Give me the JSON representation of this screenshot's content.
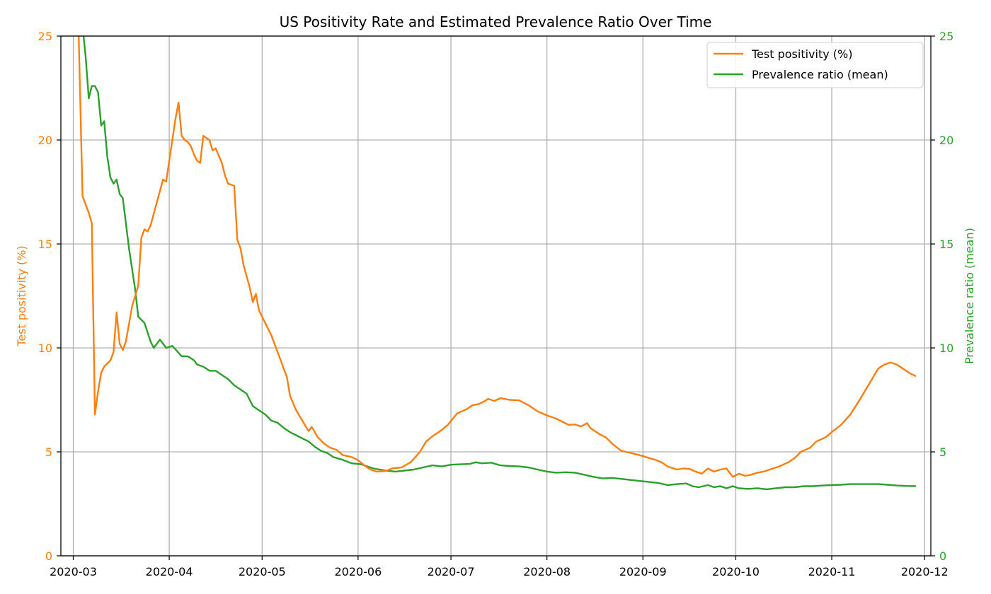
{
  "chart_data": {
    "type": "line",
    "title": "US Positivity Rate and Estimated Prevalence Ratio Over Time",
    "xlabel": "",
    "x_ticks": [
      "2020-03",
      "2020-04",
      "2020-05",
      "2020-06",
      "2020-07",
      "2020-08",
      "2020-09",
      "2020-10",
      "2020-11",
      "2020-12"
    ],
    "xlim": [
      "2020-02-26",
      "2020-12-03"
    ],
    "y_left": {
      "label": "Test positivity (%)",
      "lim": [
        0,
        25
      ],
      "ticks": [
        "0",
        "5",
        "10",
        "15",
        "20",
        "25"
      ],
      "color": "#ff7f0e"
    },
    "y_right": {
      "label": "Prevalence ratio (mean)",
      "lim": [
        0,
        25
      ],
      "ticks": [
        "0",
        "5",
        "10",
        "15",
        "20",
        "25"
      ],
      "color": "#2ca02c"
    },
    "grid": true,
    "legend_position": "top-right",
    "series": [
      {
        "name": "Test positivity (%)",
        "axis": "left",
        "color": "#ff7f0e",
        "points": [
          [
            "2020-03-01",
            36
          ],
          [
            "2020-03-04",
            17.3
          ],
          [
            "2020-03-06",
            16.5
          ],
          [
            "2020-03-07",
            16.0
          ],
          [
            "2020-03-08",
            6.8
          ],
          [
            "2020-03-09",
            7.9
          ],
          [
            "2020-03-10",
            8.8
          ],
          [
            "2020-03-11",
            9.1
          ],
          [
            "2020-03-13",
            9.4
          ],
          [
            "2020-03-14",
            9.8
          ],
          [
            "2020-03-15",
            11.7
          ],
          [
            "2020-03-16",
            10.2
          ],
          [
            "2020-03-17",
            9.9
          ],
          [
            "2020-03-18",
            10.3
          ],
          [
            "2020-03-20",
            12.0
          ],
          [
            "2020-03-22",
            13.0
          ],
          [
            "2020-03-23",
            15.3
          ],
          [
            "2020-03-24",
            15.7
          ],
          [
            "2020-03-25",
            15.6
          ],
          [
            "2020-03-26",
            15.9
          ],
          [
            "2020-03-28",
            17.0
          ],
          [
            "2020-03-30",
            18.1
          ],
          [
            "2020-03-31",
            18.0
          ],
          [
            "2020-04-01",
            19.0
          ],
          [
            "2020-04-03",
            21.0
          ],
          [
            "2020-04-04",
            21.8
          ],
          [
            "2020-04-05",
            20.2
          ],
          [
            "2020-04-06",
            20.0
          ],
          [
            "2020-04-07",
            19.9
          ],
          [
            "2020-04-08",
            19.7
          ],
          [
            "2020-04-09",
            19.3
          ],
          [
            "2020-04-10",
            19.0
          ],
          [
            "2020-04-11",
            18.9
          ],
          [
            "2020-04-12",
            20.2
          ],
          [
            "2020-04-13",
            20.1
          ],
          [
            "2020-04-14",
            20.0
          ],
          [
            "2020-04-15",
            19.5
          ],
          [
            "2020-04-16",
            19.6
          ],
          [
            "2020-04-18",
            18.9
          ],
          [
            "2020-04-19",
            18.3
          ],
          [
            "2020-04-20",
            17.9
          ],
          [
            "2020-04-22",
            17.8
          ],
          [
            "2020-04-23",
            15.2
          ],
          [
            "2020-04-24",
            14.8
          ],
          [
            "2020-04-25",
            14.0
          ],
          [
            "2020-04-27",
            12.9
          ],
          [
            "2020-04-28",
            12.2
          ],
          [
            "2020-04-29",
            12.6
          ],
          [
            "2020-04-30",
            11.8
          ],
          [
            "2020-05-02",
            11.2
          ],
          [
            "2020-05-04",
            10.6
          ],
          [
            "2020-05-05",
            10.2
          ],
          [
            "2020-05-07",
            9.4
          ],
          [
            "2020-05-09",
            8.6
          ],
          [
            "2020-05-10",
            7.7
          ],
          [
            "2020-05-12",
            7.0
          ],
          [
            "2020-05-14",
            6.5
          ],
          [
            "2020-05-16",
            6.0
          ],
          [
            "2020-05-17",
            6.2
          ],
          [
            "2020-05-19",
            5.7
          ],
          [
            "2020-05-21",
            5.4
          ],
          [
            "2020-05-23",
            5.2
          ],
          [
            "2020-05-25",
            5.1
          ],
          [
            "2020-05-27",
            4.85
          ],
          [
            "2020-05-30",
            4.75
          ],
          [
            "2020-06-01",
            4.6
          ],
          [
            "2020-06-03",
            4.35
          ],
          [
            "2020-06-05",
            4.15
          ],
          [
            "2020-06-07",
            4.05
          ],
          [
            "2020-06-10",
            4.08
          ],
          [
            "2020-06-12",
            4.2
          ],
          [
            "2020-06-15",
            4.25
          ],
          [
            "2020-06-18",
            4.5
          ],
          [
            "2020-06-21",
            5.0
          ],
          [
            "2020-06-23",
            5.5
          ],
          [
            "2020-06-25",
            5.75
          ],
          [
            "2020-06-28",
            6.05
          ],
          [
            "2020-06-30",
            6.3
          ],
          [
            "2020-07-03",
            6.85
          ],
          [
            "2020-07-06",
            7.05
          ],
          [
            "2020-07-08",
            7.25
          ],
          [
            "2020-07-10",
            7.3
          ],
          [
            "2020-07-12",
            7.45
          ],
          [
            "2020-07-13",
            7.55
          ],
          [
            "2020-07-15",
            7.45
          ],
          [
            "2020-07-17",
            7.58
          ],
          [
            "2020-07-20",
            7.5
          ],
          [
            "2020-07-23",
            7.48
          ],
          [
            "2020-07-26",
            7.25
          ],
          [
            "2020-07-29",
            6.95
          ],
          [
            "2020-08-01",
            6.75
          ],
          [
            "2020-08-04",
            6.6
          ],
          [
            "2020-08-06",
            6.45
          ],
          [
            "2020-08-08",
            6.3
          ],
          [
            "2020-08-10",
            6.32
          ],
          [
            "2020-08-12",
            6.22
          ],
          [
            "2020-08-14",
            6.38
          ],
          [
            "2020-08-15",
            6.15
          ],
          [
            "2020-08-18",
            5.85
          ],
          [
            "2020-08-20",
            5.7
          ],
          [
            "2020-08-22",
            5.4
          ],
          [
            "2020-08-25",
            5.05
          ],
          [
            "2020-08-28",
            4.95
          ],
          [
            "2020-09-01",
            4.8
          ],
          [
            "2020-09-03",
            4.7
          ],
          [
            "2020-09-05",
            4.62
          ],
          [
            "2020-09-07",
            4.5
          ],
          [
            "2020-09-09",
            4.3
          ],
          [
            "2020-09-12",
            4.15
          ],
          [
            "2020-09-14",
            4.2
          ],
          [
            "2020-09-16",
            4.18
          ],
          [
            "2020-09-18",
            4.05
          ],
          [
            "2020-09-20",
            3.95
          ],
          [
            "2020-09-22",
            4.2
          ],
          [
            "2020-09-24",
            4.05
          ],
          [
            "2020-09-26",
            4.15
          ],
          [
            "2020-09-28",
            4.2
          ],
          [
            "2020-09-30",
            3.8
          ],
          [
            "2020-10-02",
            3.95
          ],
          [
            "2020-10-04",
            3.85
          ],
          [
            "2020-10-06",
            3.9
          ],
          [
            "2020-10-08",
            4.0
          ],
          [
            "2020-10-10",
            4.05
          ],
          [
            "2020-10-12",
            4.15
          ],
          [
            "2020-10-15",
            4.3
          ],
          [
            "2020-10-18",
            4.5
          ],
          [
            "2020-10-20",
            4.7
          ],
          [
            "2020-10-22",
            5.0
          ],
          [
            "2020-10-25",
            5.2
          ],
          [
            "2020-10-27",
            5.5
          ],
          [
            "2020-10-30",
            5.7
          ],
          [
            "2020-11-01",
            5.95
          ],
          [
            "2020-11-04",
            6.3
          ],
          [
            "2020-11-07",
            6.8
          ],
          [
            "2020-11-10",
            7.5
          ],
          [
            "2020-11-12",
            8.0
          ],
          [
            "2020-11-14",
            8.5
          ],
          [
            "2020-11-16",
            9.0
          ],
          [
            "2020-11-18",
            9.2
          ],
          [
            "2020-11-20",
            9.3
          ],
          [
            "2020-11-22",
            9.2
          ],
          [
            "2020-11-24",
            9.0
          ],
          [
            "2020-11-26",
            8.8
          ],
          [
            "2020-11-28",
            8.65
          ]
        ]
      },
      {
        "name": "Prevalence ratio (mean)",
        "axis": "right",
        "color": "#2ca02c",
        "points": [
          [
            "2020-03-01",
            36
          ],
          [
            "2020-03-04",
            25.5
          ],
          [
            "2020-03-05",
            24.0
          ],
          [
            "2020-03-06",
            22.0
          ],
          [
            "2020-03-07",
            22.6
          ],
          [
            "2020-03-08",
            22.6
          ],
          [
            "2020-03-09",
            22.3
          ],
          [
            "2020-03-10",
            20.7
          ],
          [
            "2020-03-11",
            20.9
          ],
          [
            "2020-03-12",
            19.2
          ],
          [
            "2020-03-13",
            18.2
          ],
          [
            "2020-03-14",
            17.9
          ],
          [
            "2020-03-15",
            18.1
          ],
          [
            "2020-03-16",
            17.4
          ],
          [
            "2020-03-17",
            17.2
          ],
          [
            "2020-03-19",
            14.8
          ],
          [
            "2020-03-20",
            13.8
          ],
          [
            "2020-03-21",
            12.8
          ],
          [
            "2020-03-22",
            11.5
          ],
          [
            "2020-03-24",
            11.2
          ],
          [
            "2020-03-26",
            10.3
          ],
          [
            "2020-03-27",
            10.0
          ],
          [
            "2020-03-29",
            10.4
          ],
          [
            "2020-03-31",
            10.0
          ],
          [
            "2020-04-02",
            10.1
          ],
          [
            "2020-04-05",
            9.6
          ],
          [
            "2020-04-07",
            9.6
          ],
          [
            "2020-04-09",
            9.4
          ],
          [
            "2020-04-10",
            9.2
          ],
          [
            "2020-04-12",
            9.1
          ],
          [
            "2020-04-14",
            8.9
          ],
          [
            "2020-04-16",
            8.9
          ],
          [
            "2020-04-18",
            8.7
          ],
          [
            "2020-04-20",
            8.5
          ],
          [
            "2020-04-22",
            8.2
          ],
          [
            "2020-04-24",
            8.0
          ],
          [
            "2020-04-26",
            7.8
          ],
          [
            "2020-04-27",
            7.5
          ],
          [
            "2020-04-28",
            7.2
          ],
          [
            "2020-04-30",
            7.0
          ],
          [
            "2020-05-02",
            6.8
          ],
          [
            "2020-05-04",
            6.5
          ],
          [
            "2020-05-06",
            6.4
          ],
          [
            "2020-05-08",
            6.15
          ],
          [
            "2020-05-10",
            5.95
          ],
          [
            "2020-05-12",
            5.8
          ],
          [
            "2020-05-14",
            5.65
          ],
          [
            "2020-05-16",
            5.5
          ],
          [
            "2020-05-18",
            5.25
          ],
          [
            "2020-05-20",
            5.05
          ],
          [
            "2020-05-22",
            4.95
          ],
          [
            "2020-05-24",
            4.75
          ],
          [
            "2020-05-27",
            4.62
          ],
          [
            "2020-05-30",
            4.45
          ],
          [
            "2020-06-02",
            4.4
          ],
          [
            "2020-06-04",
            4.3
          ],
          [
            "2020-06-06",
            4.2
          ],
          [
            "2020-06-08",
            4.15
          ],
          [
            "2020-06-10",
            4.1
          ],
          [
            "2020-06-13",
            4.05
          ],
          [
            "2020-06-16",
            4.1
          ],
          [
            "2020-06-19",
            4.15
          ],
          [
            "2020-06-22",
            4.25
          ],
          [
            "2020-06-25",
            4.35
          ],
          [
            "2020-06-28",
            4.3
          ],
          [
            "2020-07-01",
            4.38
          ],
          [
            "2020-07-04",
            4.4
          ],
          [
            "2020-07-07",
            4.42
          ],
          [
            "2020-07-09",
            4.5
          ],
          [
            "2020-07-11",
            4.45
          ],
          [
            "2020-07-14",
            4.48
          ],
          [
            "2020-07-17",
            4.35
          ],
          [
            "2020-07-20",
            4.32
          ],
          [
            "2020-07-23",
            4.3
          ],
          [
            "2020-07-26",
            4.25
          ],
          [
            "2020-07-29",
            4.15
          ],
          [
            "2020-08-01",
            4.05
          ],
          [
            "2020-08-04",
            4.0
          ],
          [
            "2020-08-07",
            4.02
          ],
          [
            "2020-08-10",
            4.0
          ],
          [
            "2020-08-13",
            3.9
          ],
          [
            "2020-08-16",
            3.8
          ],
          [
            "2020-08-19",
            3.72
          ],
          [
            "2020-08-22",
            3.75
          ],
          [
            "2020-08-25",
            3.7
          ],
          [
            "2020-08-28",
            3.65
          ],
          [
            "2020-08-31",
            3.6
          ],
          [
            "2020-09-03",
            3.55
          ],
          [
            "2020-09-06",
            3.5
          ],
          [
            "2020-09-09",
            3.4
          ],
          [
            "2020-09-12",
            3.45
          ],
          [
            "2020-09-15",
            3.48
          ],
          [
            "2020-09-17",
            3.35
          ],
          [
            "2020-09-19",
            3.3
          ],
          [
            "2020-09-22",
            3.4
          ],
          [
            "2020-09-24",
            3.3
          ],
          [
            "2020-09-26",
            3.35
          ],
          [
            "2020-09-28",
            3.25
          ],
          [
            "2020-09-30",
            3.35
          ],
          [
            "2020-10-02",
            3.25
          ],
          [
            "2020-10-05",
            3.22
          ],
          [
            "2020-10-08",
            3.25
          ],
          [
            "2020-10-11",
            3.2
          ],
          [
            "2020-10-14",
            3.25
          ],
          [
            "2020-10-17",
            3.3
          ],
          [
            "2020-10-20",
            3.3
          ],
          [
            "2020-10-23",
            3.35
          ],
          [
            "2020-10-26",
            3.35
          ],
          [
            "2020-10-29",
            3.38
          ],
          [
            "2020-11-01",
            3.4
          ],
          [
            "2020-11-04",
            3.42
          ],
          [
            "2020-11-07",
            3.45
          ],
          [
            "2020-11-10",
            3.45
          ],
          [
            "2020-11-13",
            3.45
          ],
          [
            "2020-11-16",
            3.45
          ],
          [
            "2020-11-19",
            3.42
          ],
          [
            "2020-11-22",
            3.38
          ],
          [
            "2020-11-25",
            3.36
          ],
          [
            "2020-11-28",
            3.35
          ]
        ]
      }
    ]
  }
}
